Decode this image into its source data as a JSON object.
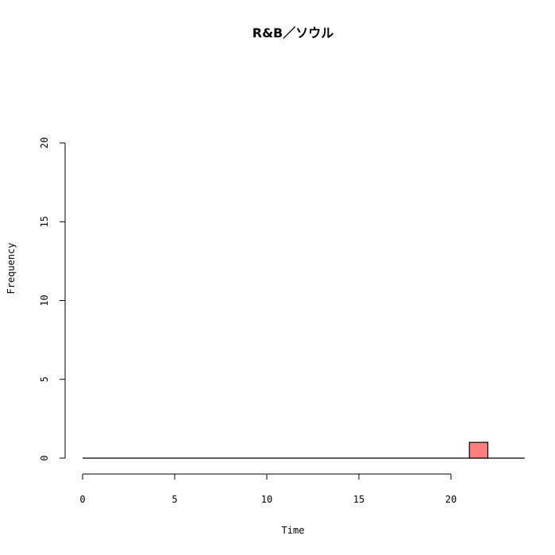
{
  "chart_data": {
    "type": "bar",
    "title": "R&B／ソウル",
    "xlabel": "Time",
    "ylabel": "Frequency",
    "xlim": [
      0,
      24
    ],
    "ylim": [
      0,
      20
    ],
    "x_ticks": [
      "0",
      "5",
      "10",
      "15",
      "20"
    ],
    "y_ticks": [
      "0",
      "5",
      "10",
      "15",
      "20"
    ],
    "bins": [
      {
        "start": 21,
        "end": 22,
        "count": 1
      }
    ],
    "baseline": {
      "from": 0,
      "to": 24
    },
    "bar_color": "#ff7f7f",
    "grid": false,
    "legend": "none"
  }
}
